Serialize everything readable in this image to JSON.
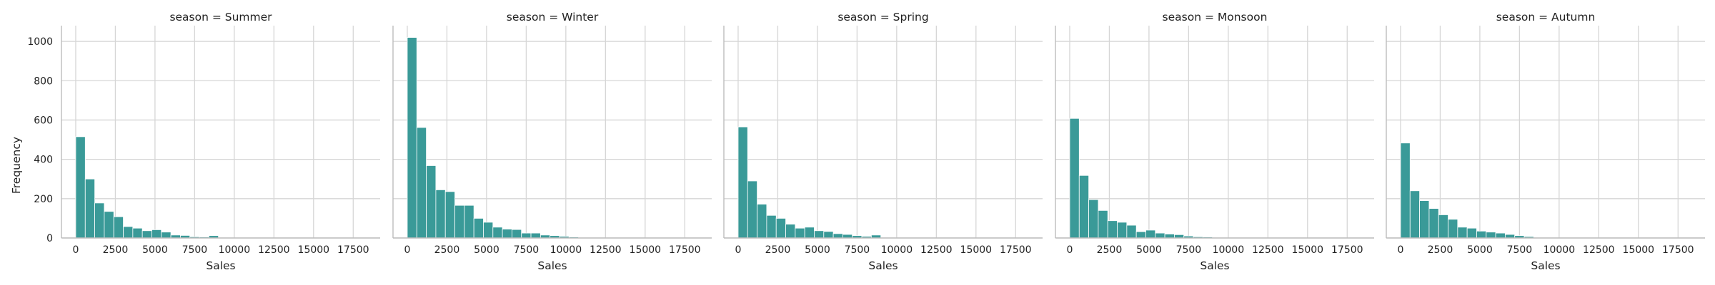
{
  "chart_data": {
    "type": "bar",
    "subtype": "faceted-histogram",
    "xlabel": "Sales",
    "ylabel": "Frequency",
    "xlim": [
      -900,
      19200
    ],
    "ylim": [
      0,
      1080
    ],
    "x_ticks": [
      0,
      2500,
      5000,
      7500,
      10000,
      12500,
      15000,
      17500
    ],
    "x_tick_labels": [
      "0",
      "2500",
      "5000",
      "7500",
      "10000",
      "12500",
      "15000",
      "17500"
    ],
    "y_ticks": [
      0,
      200,
      400,
      600,
      800,
      1000
    ],
    "y_tick_labels": [
      "0",
      "200",
      "400",
      "600",
      "800",
      "1000"
    ],
    "bin_width": 600,
    "bin_start": 0,
    "bar_color": "#3a9a98",
    "bar_edge_color": "#ffffff",
    "grid": true,
    "grid_color": "#d6d6d6",
    "shared_y": true,
    "panels": [
      {
        "title": "season = Summer",
        "values": [
          515,
          300,
          178,
          135,
          108,
          58,
          50,
          37,
          42,
          30,
          15,
          13,
          6,
          5,
          12,
          0,
          0,
          0,
          0,
          0,
          0,
          0,
          0,
          0,
          0,
          0,
          0,
          0,
          0,
          0,
          0,
          0
        ]
      },
      {
        "title": "season = Winter",
        "values": [
          1020,
          562,
          368,
          245,
          236,
          166,
          166,
          100,
          80,
          55,
          45,
          43,
          25,
          25,
          15,
          12,
          8,
          5,
          0,
          0,
          0,
          0,
          0,
          0,
          0,
          0,
          0,
          0,
          0,
          0,
          0,
          0
        ]
      },
      {
        "title": "season = Spring",
        "values": [
          565,
          290,
          172,
          115,
          100,
          70,
          50,
          55,
          37,
          33,
          22,
          18,
          12,
          8,
          15,
          0,
          0,
          0,
          0,
          0,
          0,
          0,
          0,
          0,
          0,
          0,
          0,
          0,
          0,
          0,
          0,
          0
        ]
      },
      {
        "title": "season = Monsoon",
        "values": [
          608,
          318,
          195,
          140,
          88,
          80,
          65,
          32,
          40,
          25,
          20,
          17,
          10,
          6,
          5,
          0,
          0,
          0,
          0,
          0,
          0,
          0,
          0,
          0,
          0,
          0,
          0,
          0,
          0,
          0,
          0,
          0
        ]
      },
      {
        "title": "season = Autumn",
        "values": [
          483,
          240,
          190,
          150,
          118,
          95,
          55,
          50,
          35,
          30,
          25,
          18,
          12,
          7,
          0,
          0,
          0,
          0,
          0,
          0,
          0,
          0,
          0,
          0,
          0,
          0,
          0,
          0,
          0,
          0,
          0,
          0
        ]
      }
    ]
  }
}
